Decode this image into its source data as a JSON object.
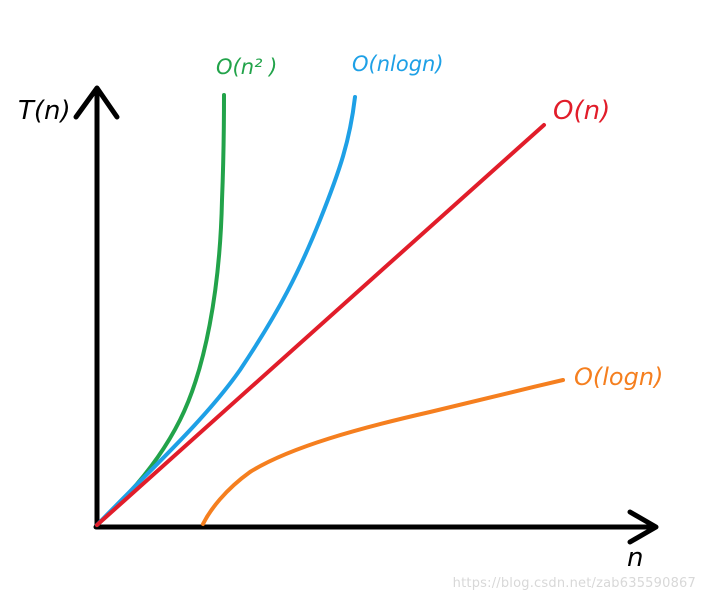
{
  "chart_data": {
    "type": "line",
    "xlabel": "n",
    "ylabel": "T(n)",
    "grid": false,
    "legend": "none",
    "series": [
      {
        "name": "O(n² )",
        "color": "#22a34a"
      },
      {
        "name": "O(nlogn)",
        "color": "#1ea0e6"
      },
      {
        "name": "O(n)",
        "color": "#e11d2a"
      },
      {
        "name": "O(logn)",
        "color": "#f57f1f"
      }
    ]
  },
  "watermark": "https://blog.csdn.net/zab635590867"
}
